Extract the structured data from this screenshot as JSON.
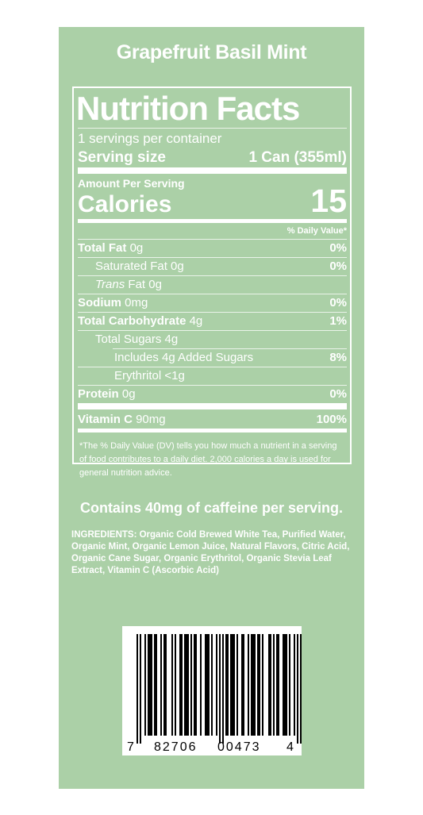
{
  "flavor": "Grapefruit Basil Mint",
  "label": {
    "title": "Nutrition Facts",
    "servings_per_container": "1 servings per container",
    "serving_size_label": "Serving size",
    "serving_size_value": "1 Can (355ml)",
    "amount_per_serving": "Amount Per Serving",
    "calories_label": "Calories",
    "calories_value": "15",
    "dv_header": "% Daily Value*",
    "total_fat": {
      "label": "Total Fat",
      "amount": "0g",
      "dv": "0%"
    },
    "saturated_fat": {
      "label": "Saturated Fat 0g",
      "dv": "0%"
    },
    "trans_fat": {
      "label_italic": "Trans",
      "label_rest": "Fat 0g"
    },
    "sodium": {
      "label": "Sodium",
      "amount": "0mg",
      "dv": "0%"
    },
    "total_carb": {
      "label": "Total Carbohydrate",
      "amount": "4g",
      "dv": "1%"
    },
    "total_sugars": {
      "label": "Total Sugars 4g"
    },
    "added_sugars": {
      "label": "Includes 4g Added Sugars",
      "dv": "8%"
    },
    "erythritol": {
      "label": "Erythritol <1g"
    },
    "protein": {
      "label": "Protein",
      "amount": "0g",
      "dv": "0%"
    },
    "vitamin_c": {
      "label": "Vitamin C",
      "amount": "90mg",
      "dv": "100%"
    },
    "footnote_marker": "*",
    "footnote": "The % Daily Value (DV) tells you how much a nutrient in a serving of food contributes to a daily diet. 2,000 calories a day is used for general nutrition advice."
  },
  "caffeine": "Contains 40mg of caffeine per serving.",
  "ingredients": "INGREDIENTS: Organic Cold Brewed White Tea, Purified Water, Organic Mint,  Organic Lemon Juice, Natural Flavors, Citric Acid, Organic Cane Sugar, Organic Erythritol, Organic Stevia Leaf Extract, Vitamin C (Ascorbic Acid)",
  "barcode": {
    "digit_first": "7",
    "group_left": "82706",
    "group_right": "00473",
    "digit_last": "4"
  },
  "colors": {
    "panel": "#abd0a7",
    "text": "#ffffff",
    "barcode_ink": "#000000"
  }
}
